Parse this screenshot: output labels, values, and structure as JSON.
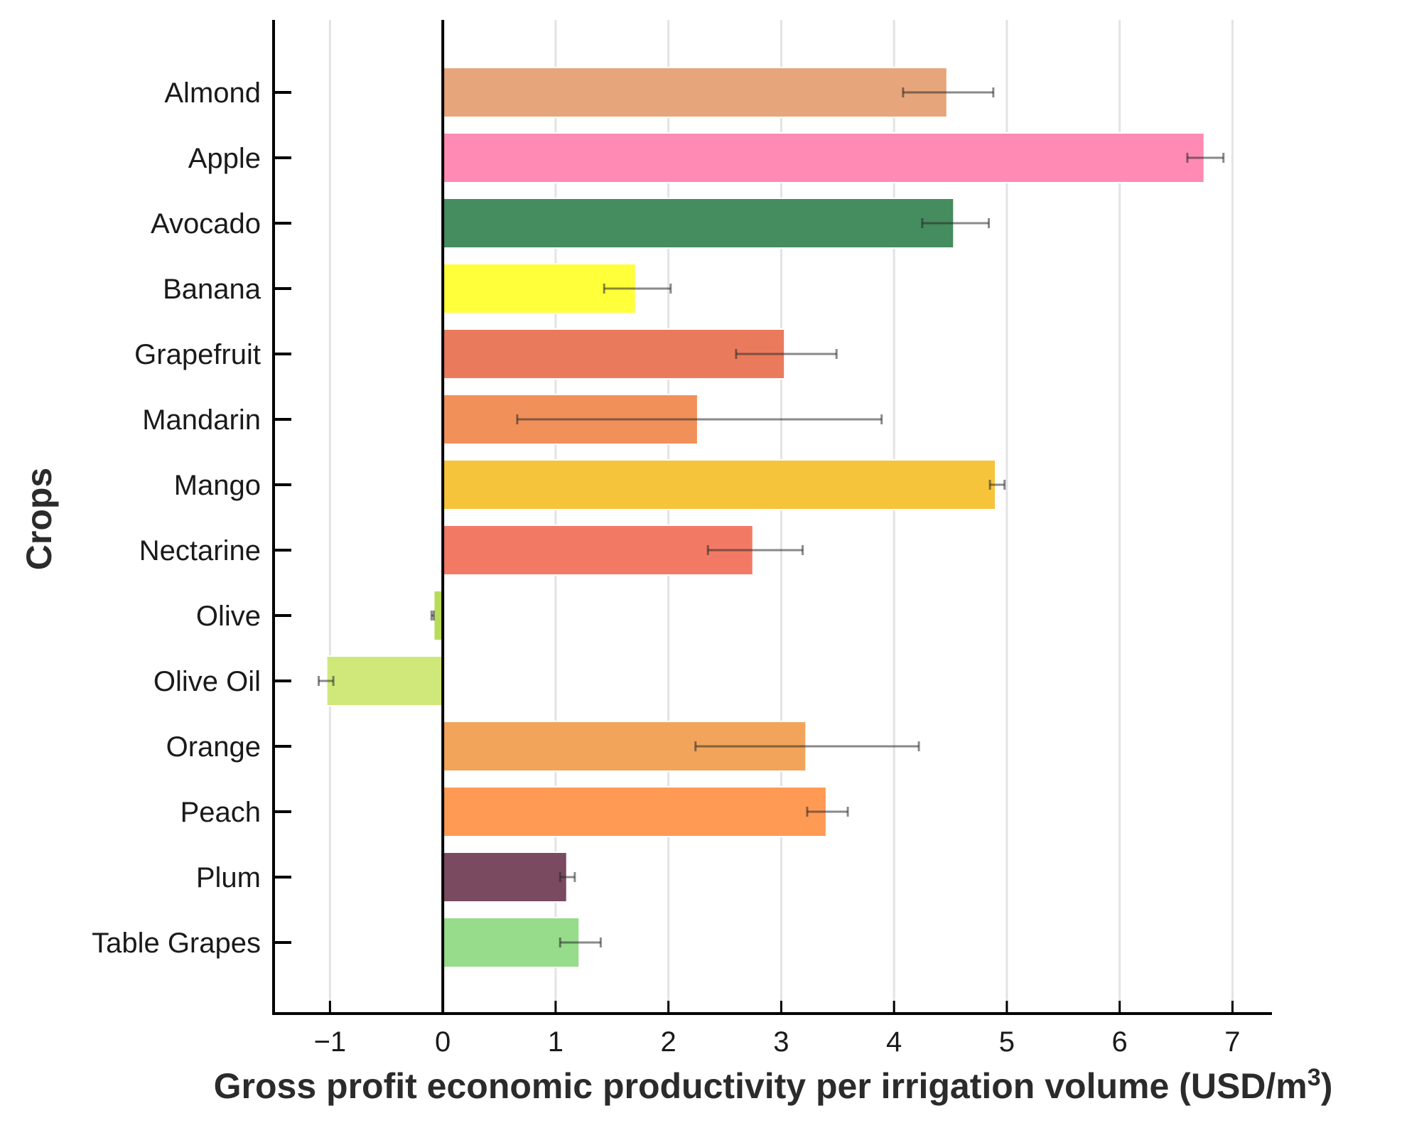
{
  "chart_data": {
    "type": "bar",
    "orientation": "horizontal",
    "title": "",
    "xlabel": "Gross profit economic productivity per irrigation volume (USD/m",
    "xlabel_superscript": "3",
    "xlabel_suffix": ")",
    "ylabel": "Crops",
    "xlim": [
      -1.5,
      7.35
    ],
    "xticks": [
      -1,
      0,
      1,
      2,
      3,
      4,
      5,
      6,
      7
    ],
    "xtick_labels": [
      "−1",
      "0",
      "1",
      "2",
      "3",
      "4",
      "5",
      "6",
      "7"
    ],
    "grid": "vertical",
    "categories": [
      "Almond",
      "Apple",
      "Avocado",
      "Banana",
      "Grapefruit",
      "Mandarin",
      "Mango",
      "Nectarine",
      "Olive",
      "Olive Oil",
      "Orange",
      "Peach",
      "Plum",
      "Table Grapes"
    ],
    "values": [
      4.47,
      6.75,
      4.53,
      1.71,
      3.03,
      2.26,
      4.9,
      2.75,
      -0.08,
      -1.03,
      3.22,
      3.4,
      1.1,
      1.21
    ],
    "error_low": [
      4.08,
      6.6,
      4.25,
      1.43,
      2.6,
      0.66,
      4.85,
      2.35,
      -0.1,
      -1.1,
      2.24,
      3.23,
      1.04,
      1.04
    ],
    "error_high": [
      4.88,
      6.92,
      4.84,
      2.02,
      3.49,
      3.89,
      4.98,
      3.19,
      -0.08,
      -0.97,
      4.22,
      3.59,
      1.17,
      1.4
    ],
    "colors": [
      "#e6a57a",
      "#ff8ab4",
      "#458c5f",
      "#ffff3a",
      "#ea7a5c",
      "#f2905a",
      "#f6c43a",
      "#f27a64",
      "#b8dc5a",
      "#d0e87a",
      "#f2a55a",
      "#ff9a55",
      "#7a4a60",
      "#96dc8a"
    ]
  }
}
